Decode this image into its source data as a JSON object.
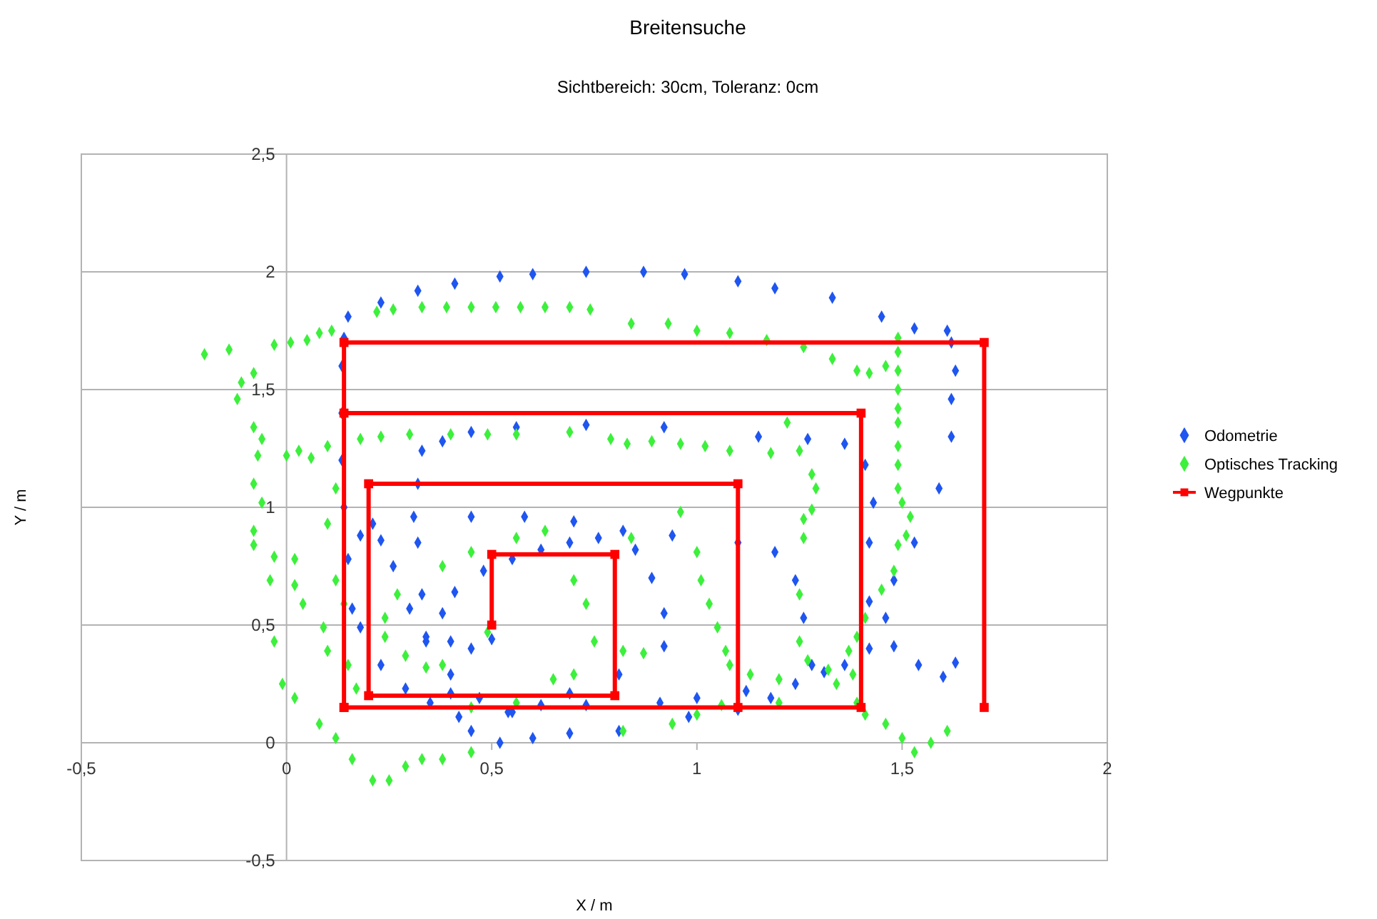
{
  "chart_data": {
    "type": "scatter",
    "title": "Breitensuche",
    "subtitle": "Sichtbereich: 30cm, Toleranz: 0cm",
    "xlabel": "X / m",
    "ylabel": "Y / m",
    "xlim": [
      -0.5,
      2
    ],
    "ylim": [
      -0.5,
      2.5
    ],
    "xticks": [
      {
        "value": -0.5,
        "label": "-0,5"
      },
      0,
      {
        "value": 0.5,
        "label": "0,5"
      },
      1,
      {
        "value": 1.5,
        "label": "1,5"
      },
      2
    ],
    "yticks": [
      {
        "value": -0.5,
        "label": "-0,5"
      },
      0,
      {
        "value": 0.5,
        "label": "0,5"
      },
      1,
      {
        "value": 1.5,
        "label": "1,5"
      },
      2,
      {
        "value": 2.5,
        "label": "2,5"
      }
    ],
    "grid": "y",
    "legend": "right",
    "series": [
      {
        "name": "Odometrie",
        "marker": "diamond",
        "color": "#1f55f0",
        "x": [
          0.5,
          0.45,
          0.4,
          0.38,
          0.41,
          0.48,
          0.55,
          0.62,
          0.69,
          0.76,
          0.85,
          0.89,
          0.92,
          0.92,
          0.81,
          0.69,
          0.62,
          0.54,
          0.47,
          0.4,
          0.34,
          0.3,
          0.26,
          0.23,
          0.18,
          0.21,
          0.31,
          0.45,
          0.58,
          0.7,
          0.82,
          0.94,
          1.1,
          1.19,
          1.24,
          1.26,
          1.28,
          1.24,
          1.18,
          1.1,
          0.98,
          0.81,
          0.69,
          0.6,
          0.52,
          0.45,
          0.4,
          0.34,
          0.33,
          0.32,
          0.32,
          0.33,
          0.38,
          0.45,
          0.56,
          0.73,
          0.92,
          1.15,
          1.27,
          1.36,
          1.41,
          1.43,
          1.42,
          1.42,
          1.42,
          1.36,
          1.31,
          1.12,
          1.0,
          0.91,
          0.73,
          0.55,
          0.42,
          0.35,
          0.29,
          0.23,
          0.18,
          0.16,
          0.15,
          0.14,
          0.135,
          0.135,
          0.135,
          0.14,
          0.15,
          0.23,
          0.32,
          0.41,
          0.52,
          0.6,
          0.73,
          0.87,
          0.97,
          1.1,
          1.19,
          1.33,
          1.45,
          1.53,
          1.61,
          1.62,
          1.63,
          1.62,
          1.62,
          1.59,
          1.53,
          1.48,
          1.46,
          1.48,
          1.54,
          1.6,
          1.63
        ],
        "values": [
          0.44,
          0.4,
          0.43,
          0.55,
          0.64,
          0.73,
          0.78,
          0.82,
          0.85,
          0.87,
          0.82,
          0.7,
          0.55,
          0.41,
          0.29,
          0.21,
          0.16,
          0.13,
          0.19,
          0.29,
          0.43,
          0.57,
          0.75,
          0.86,
          0.88,
          0.93,
          0.96,
          0.96,
          0.96,
          0.94,
          0.9,
          0.88,
          0.85,
          0.81,
          0.69,
          0.53,
          0.33,
          0.25,
          0.19,
          0.14,
          0.11,
          0.05,
          0.04,
          0.02,
          0.0,
          0.05,
          0.21,
          0.45,
          0.63,
          0.85,
          1.1,
          1.24,
          1.28,
          1.32,
          1.34,
          1.35,
          1.34,
          1.3,
          1.29,
          1.27,
          1.18,
          1.02,
          0.85,
          0.6,
          0.4,
          0.33,
          0.3,
          0.22,
          0.19,
          0.17,
          0.16,
          0.13,
          0.11,
          0.17,
          0.23,
          0.33,
          0.49,
          0.57,
          0.78,
          1.0,
          1.2,
          1.4,
          1.6,
          1.72,
          1.81,
          1.87,
          1.92,
          1.95,
          1.98,
          1.99,
          2.0,
          2.0,
          1.99,
          1.96,
          1.93,
          1.89,
          1.81,
          1.76,
          1.75,
          1.7,
          1.58,
          1.46,
          1.3,
          1.08,
          0.85,
          0.69,
          0.53,
          0.41,
          0.33,
          0.28,
          0.34
        ]
      },
      {
        "name": "Optisches Tracking",
        "marker": "diamond",
        "color": "#3cf03c",
        "x": [
          0.49,
          0.38,
          0.45,
          0.56,
          0.63,
          0.84,
          0.7,
          0.73,
          0.75,
          0.82,
          0.87,
          0.27,
          0.24,
          0.24,
          0.29,
          0.34,
          0.38,
          -0.08,
          -0.08,
          -0.03,
          0.02,
          0.02,
          0.04,
          0.09,
          0.1,
          -0.2,
          -0.14,
          -0.11,
          -0.08,
          -0.12,
          -0.08,
          -0.06,
          -0.07,
          -0.08,
          -0.06,
          -0.04,
          -0.03,
          -0.01,
          0.02,
          0.08,
          0.12,
          0.16,
          0.21,
          0.25,
          0.29,
          0.33,
          0.38,
          0.45,
          -0.03,
          0.01,
          0.05,
          0.08,
          0.11,
          0.22,
          0.26,
          0.33,
          0.39,
          0.45,
          0.51,
          0.57,
          0.63,
          0.69,
          0.74,
          0.84,
          0.93,
          1.0,
          1.08,
          1.17,
          1.26,
          1.33,
          1.39,
          1.42,
          1.46,
          1.49,
          1.49,
          1.49,
          1.49,
          1.49,
          1.49,
          1.49,
          1.49,
          1.49,
          1.5,
          1.52,
          1.51,
          1.49,
          1.48,
          1.45,
          1.41,
          1.39,
          1.37,
          1.38,
          1.39,
          1.41,
          1.46,
          1.5,
          1.53,
          1.57,
          1.61,
          0.0,
          0.03,
          0.06,
          0.1,
          0.18,
          0.23,
          0.3,
          0.4,
          0.49,
          0.56,
          0.69,
          0.79,
          0.83,
          0.89,
          0.96,
          1.02,
          1.08,
          1.18,
          1.22,
          1.25,
          1.28,
          1.29,
          1.28,
          1.26,
          1.26,
          1.25,
          1.25,
          1.27,
          1.32,
          1.34,
          0.96,
          1.0,
          1.01,
          1.03,
          1.05,
          1.07,
          1.08,
          1.13,
          1.2,
          1.2,
          0.82,
          0.94,
          1.0,
          1.06,
          0.45,
          0.56,
          0.65,
          0.7,
          0.12,
          0.1,
          0.12,
          0.14,
          0.15,
          0.17
        ],
        "values": [
          0.47,
          0.75,
          0.81,
          0.87,
          0.9,
          0.87,
          0.69,
          0.59,
          0.43,
          0.39,
          0.38,
          0.63,
          0.53,
          0.45,
          0.37,
          0.32,
          0.33,
          0.9,
          0.84,
          0.79,
          0.78,
          0.67,
          0.59,
          0.49,
          0.39,
          1.65,
          1.67,
          1.53,
          1.57,
          1.46,
          1.34,
          1.29,
          1.22,
          1.1,
          1.02,
          0.69,
          0.43,
          0.25,
          0.19,
          0.08,
          0.02,
          -0.07,
          -0.16,
          -0.16,
          -0.1,
          -0.07,
          -0.07,
          -0.04,
          1.69,
          1.7,
          1.71,
          1.74,
          1.75,
          1.83,
          1.84,
          1.85,
          1.85,
          1.85,
          1.85,
          1.85,
          1.85,
          1.85,
          1.84,
          1.78,
          1.78,
          1.75,
          1.74,
          1.71,
          1.68,
          1.63,
          1.58,
          1.57,
          1.6,
          1.58,
          1.66,
          1.72,
          1.5,
          1.42,
          1.36,
          1.26,
          1.18,
          1.08,
          1.02,
          0.96,
          0.88,
          0.84,
          0.73,
          0.65,
          0.53,
          0.45,
          0.39,
          0.29,
          0.17,
          0.12,
          0.08,
          0.02,
          -0.04,
          0.0,
          0.05,
          1.22,
          1.24,
          1.21,
          1.26,
          1.29,
          1.3,
          1.31,
          1.31,
          1.31,
          1.31,
          1.32,
          1.29,
          1.27,
          1.28,
          1.27,
          1.26,
          1.24,
          1.23,
          1.36,
          1.24,
          1.14,
          1.08,
          0.99,
          0.95,
          0.87,
          0.63,
          0.43,
          0.35,
          0.31,
          0.25,
          0.98,
          0.81,
          0.69,
          0.59,
          0.49,
          0.39,
          0.33,
          0.29,
          0.27,
          0.17,
          0.05,
          0.08,
          0.12,
          0.16,
          0.15,
          0.17,
          0.27,
          0.29,
          1.08,
          0.93,
          0.69,
          0.59,
          0.33,
          0.23
        ]
      },
      {
        "name": "Wegpunkte",
        "type": "line",
        "marker": "square",
        "color": "#ff0000",
        "x": [
          0.5,
          0.5,
          0.8,
          0.8,
          0.2,
          0.2,
          1.1,
          1.1,
          0.14,
          0.14,
          1.4,
          1.4,
          0.14,
          0.14,
          1.7,
          1.7
        ],
        "values": [
          0.5,
          0.8,
          0.8,
          0.2,
          0.2,
          1.1,
          1.1,
          0.15,
          0.15,
          1.4,
          1.4,
          0.15,
          0.15,
          1.7,
          1.7,
          0.15
        ]
      }
    ]
  }
}
